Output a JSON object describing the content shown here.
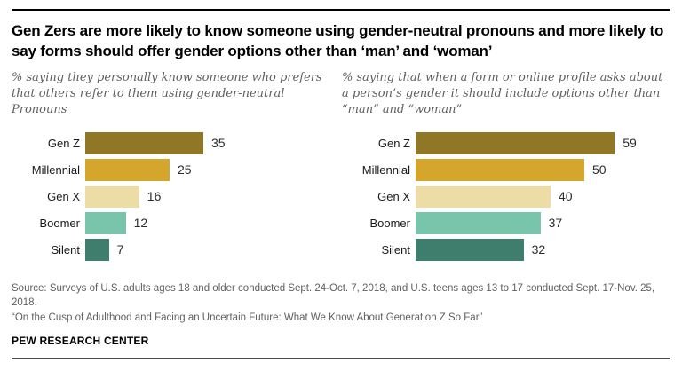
{
  "page": {
    "title": "Gen Zers are more likely to know someone using gender-neutral pronouns and more likely to say forms should offer gender options other than ‘man’ and ‘woman’",
    "source_line1": "Source: Surveys of U.S. adults ages 18 and older conducted Sept. 24-Oct. 7, 2018, and U.S. teens ages 13 to 17 conducted Sept. 17-Nov. 25, 2018.",
    "source_line2": "“On the Cusp of Adulthood and Facing an Uncertain Future: What We Know About Generation Z So Far”",
    "brand": "PEW RESEARCH CENTER"
  },
  "chart_data": [
    {
      "type": "bar",
      "orientation": "horizontal",
      "subtitle": "% saying they personally know someone who prefers that others refer to them using gender-neutral Pronouns",
      "categories": [
        "Gen Z",
        "Millennial",
        "Gen X",
        "Boomer",
        "Silent"
      ],
      "values": [
        35,
        25,
        16,
        12,
        7
      ],
      "value_labels": true,
      "xlim": [
        0,
        62
      ],
      "grid": false,
      "legend": "none"
    },
    {
      "type": "bar",
      "orientation": "horizontal",
      "subtitle": "% saying that when a form or online profile asks about a person’s gender it should include options other than “man” and “woman”",
      "categories": [
        "Gen Z",
        "Millennial",
        "Gen X",
        "Boomer",
        "Silent"
      ],
      "values": [
        59,
        50,
        40,
        37,
        32
      ],
      "value_labels": true,
      "xlim": [
        0,
        62
      ],
      "grid": false,
      "legend": "none"
    }
  ],
  "style": {
    "bar_colors": [
      "#907627",
      "#D4A72C",
      "#ECDCA6",
      "#79C5AC",
      "#3F7E6D"
    ],
    "rule_top_color": "#000000",
    "rule_bottom_color": "#4d4d4d"
  }
}
